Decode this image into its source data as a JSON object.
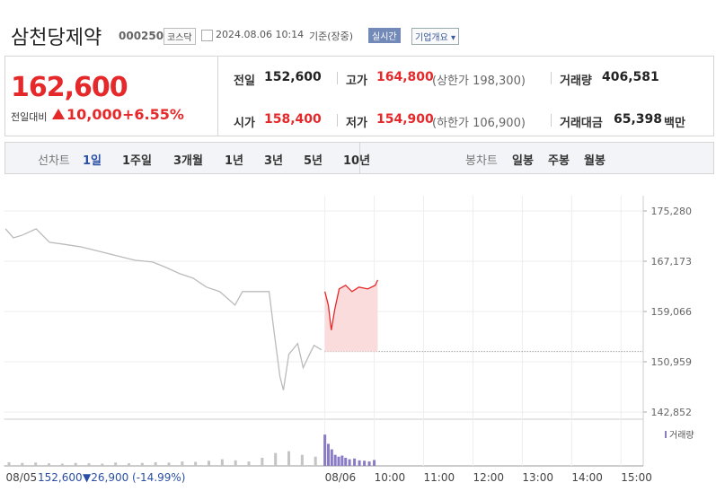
{
  "header": {
    "name": "삼천당제약",
    "code": "000250",
    "market": "코스닥",
    "time": "2024.08.06 10:14",
    "status": "기준(장중)",
    "realtime": "실시간",
    "company": "기업개요"
  },
  "quote": {
    "price": "162,600",
    "change_label": "전일대비",
    "change": "10,000",
    "rate": "+6.55%",
    "items": [
      {
        "label": "전일",
        "value": "152,600"
      },
      {
        "label": "고가",
        "value": "164,800",
        "note": "(상한가 198,300)"
      },
      {
        "label": "거래량",
        "value": "406,581"
      },
      {
        "label": "시가",
        "value": "158,400"
      },
      {
        "label": "저가",
        "value": "154,900",
        "note": "(하한가 106,900)"
      },
      {
        "label": "거래대금",
        "value": "65,398",
        "unit": "백만"
      }
    ]
  },
  "tabs": {
    "line_label": "선차트",
    "line": [
      "1일",
      "1주일",
      "3개월",
      "1년",
      "3년",
      "5년",
      "10년"
    ],
    "candle_label": "봉차트",
    "candle": [
      "일봉",
      "주봉",
      "월봉"
    ]
  },
  "chart_data": {
    "type": "line",
    "xlim": [
      2.5,
      15.45
    ],
    "ylim": [
      142852,
      175280
    ],
    "xticks": [
      {
        "value": 2.5,
        "label": "08/05"
      },
      {
        "value": 9,
        "label": "08/06"
      },
      {
        "value": 10,
        "label": "10:00"
      },
      {
        "value": 11,
        "label": "11:00"
      },
      {
        "value": 12,
        "label": "12:00"
      },
      {
        "value": 13,
        "label": "13:00"
      },
      {
        "value": 14,
        "label": "14:00"
      },
      {
        "value": 15,
        "label": "15:00"
      }
    ],
    "yticks": [
      {
        "value": 142852,
        "label": "142,852"
      },
      {
        "value": 150959,
        "label": "150,959"
      },
      {
        "value": 159066,
        "label": "159,066"
      },
      {
        "value": 167173,
        "label": "167,173"
      },
      {
        "value": 175280,
        "label": "175,280"
      }
    ],
    "series": [
      {
        "color": "#bbbbbb",
        "x": [
          2.53,
          2.69,
          2.87,
          3.15,
          3.42,
          3.69,
          4.05,
          4.42,
          4.78,
          5.15,
          5.51,
          5.78,
          6.06,
          6.33,
          6.6,
          6.87,
          7.18,
          7.33,
          7.87,
          7.96,
          8.09,
          8.16,
          8.27,
          8.45,
          8.56,
          8.69,
          8.78,
          8.93
        ],
        "values": [
          172390,
          170945,
          171379,
          172390,
          170223,
          169933,
          169500,
          168778,
          168055,
          167333,
          167044,
          166177,
          165165,
          164443,
          162998,
          162275,
          160108,
          162275,
          162275,
          156495,
          148548,
          146380,
          152160,
          153894,
          149993,
          152160,
          153605,
          152883
        ]
      },
      {
        "color": "#e5292b",
        "fill": "#fbdcdc",
        "x": [
          9.0,
          9.07,
          9.13,
          9.2,
          9.29,
          9.42,
          9.55,
          9.69,
          9.87,
          10.02,
          10.07
        ],
        "values": [
          162275,
          160108,
          156062,
          159385,
          162709,
          163287,
          162275,
          162998,
          162709,
          163287,
          164153
        ]
      }
    ],
    "base": {
      "value": 152600,
      "label": "152,600"
    },
    "base_change": "▼26,900 (-14.99%)",
    "volume": {
      "name": "거래량",
      "ylim": [
        0,
        100
      ],
      "series": [
        {
          "color": "#c4c4c4",
          "x": [
            2.6,
            2.87,
            3.14,
            3.41,
            3.68,
            3.95,
            4.22,
            4.49,
            4.76,
            5.03,
            5.3,
            5.57,
            5.84,
            6.11,
            6.38,
            6.65,
            6.92,
            7.19,
            7.46,
            7.73,
            8.0,
            8.27,
            8.54,
            8.81
          ],
          "values": [
            10,
            8,
            9,
            7,
            6,
            8,
            7,
            6,
            9,
            7,
            8,
            10,
            9,
            12,
            11,
            14,
            18,
            15,
            12,
            22,
            35,
            40,
            30,
            25
          ]
        },
        {
          "color": "#8a7cc4",
          "x": [
            9.0,
            9.07,
            9.14,
            9.21,
            9.28,
            9.35,
            9.42,
            9.5,
            9.6,
            9.7,
            9.8,
            9.9,
            10.0
          ],
          "values": [
            85,
            60,
            45,
            30,
            25,
            28,
            22,
            18,
            20,
            15,
            14,
            12,
            16
          ]
        }
      ]
    }
  }
}
